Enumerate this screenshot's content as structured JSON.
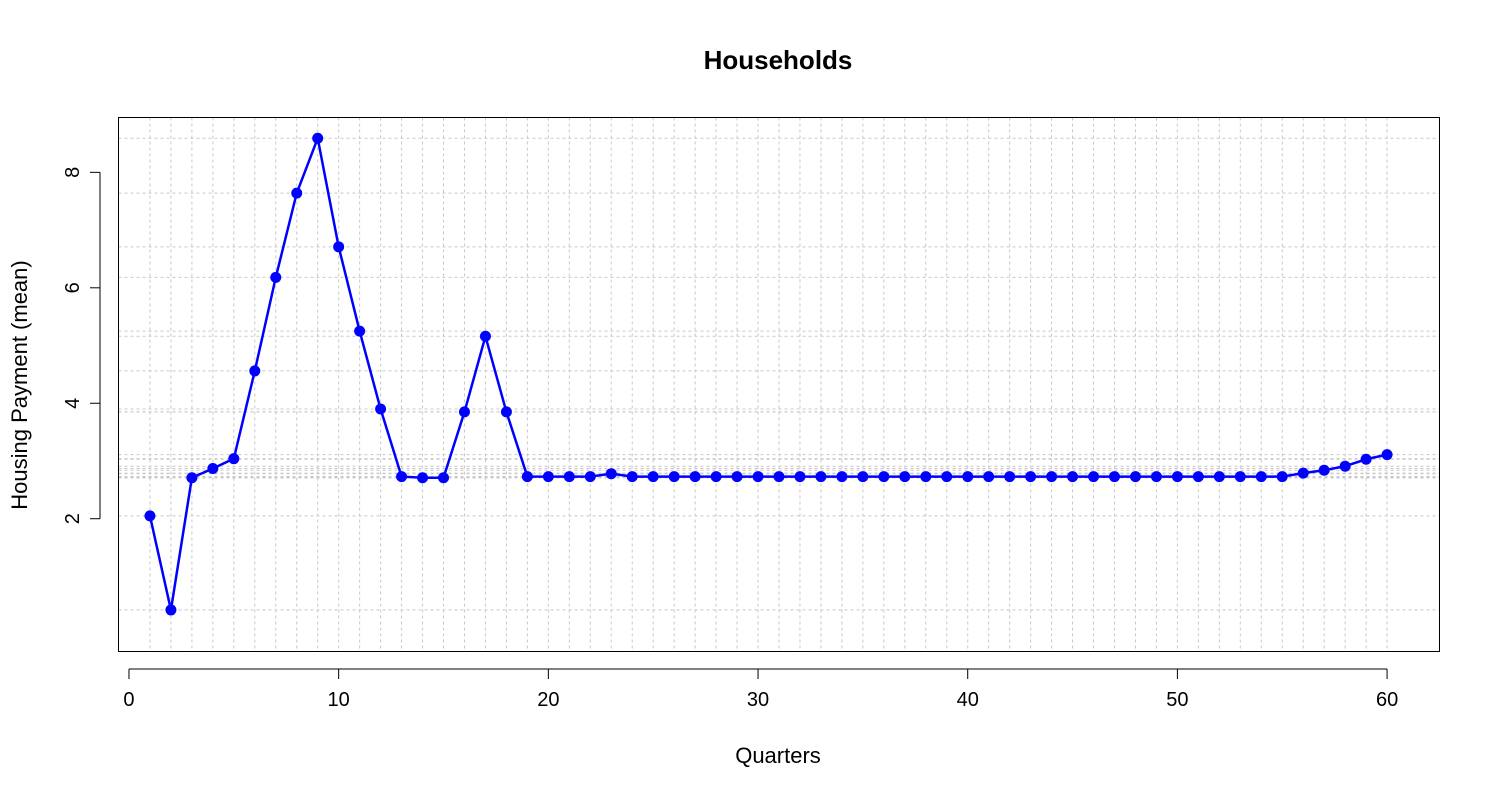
{
  "chart_data": {
    "type": "line",
    "title": "Households",
    "xlabel": "Quarters",
    "ylabel": "Housing Payment (mean)",
    "xlim": [
      -0.5,
      62.5
    ],
    "ylim": [
      -0.3,
      8.95
    ],
    "x_ticks": [
      0,
      10,
      20,
      30,
      40,
      50,
      60
    ],
    "y_ticks": [
      2,
      4,
      6,
      8
    ],
    "grid": true,
    "color": "#0000ff",
    "x": [
      1,
      2,
      3,
      4,
      5,
      6,
      7,
      8,
      9,
      10,
      11,
      12,
      13,
      14,
      15,
      16,
      17,
      18,
      19,
      20,
      21,
      22,
      23,
      24,
      25,
      26,
      27,
      28,
      29,
      30,
      31,
      32,
      33,
      34,
      35,
      36,
      37,
      38,
      39,
      40,
      41,
      42,
      43,
      44,
      45,
      46,
      47,
      48,
      49,
      50,
      51,
      52,
      53,
      54,
      55,
      56,
      57,
      58,
      59,
      60
    ],
    "values": [
      2.05,
      0.42,
      2.71,
      2.87,
      3.04,
      4.56,
      6.18,
      7.64,
      8.59,
      6.71,
      5.25,
      3.9,
      2.73,
      2.71,
      2.71,
      3.85,
      5.16,
      3.85,
      2.73,
      2.73,
      2.73,
      2.73,
      2.78,
      2.73,
      2.73,
      2.73,
      2.73,
      2.73,
      2.73,
      2.73,
      2.73,
      2.73,
      2.73,
      2.73,
      2.73,
      2.73,
      2.73,
      2.73,
      2.73,
      2.73,
      2.73,
      2.73,
      2.73,
      2.73,
      2.73,
      2.73,
      2.73,
      2.73,
      2.73,
      2.73,
      2.73,
      2.73,
      2.73,
      2.73,
      2.73,
      2.79,
      2.84,
      2.91,
      3.03,
      3.11
    ]
  }
}
